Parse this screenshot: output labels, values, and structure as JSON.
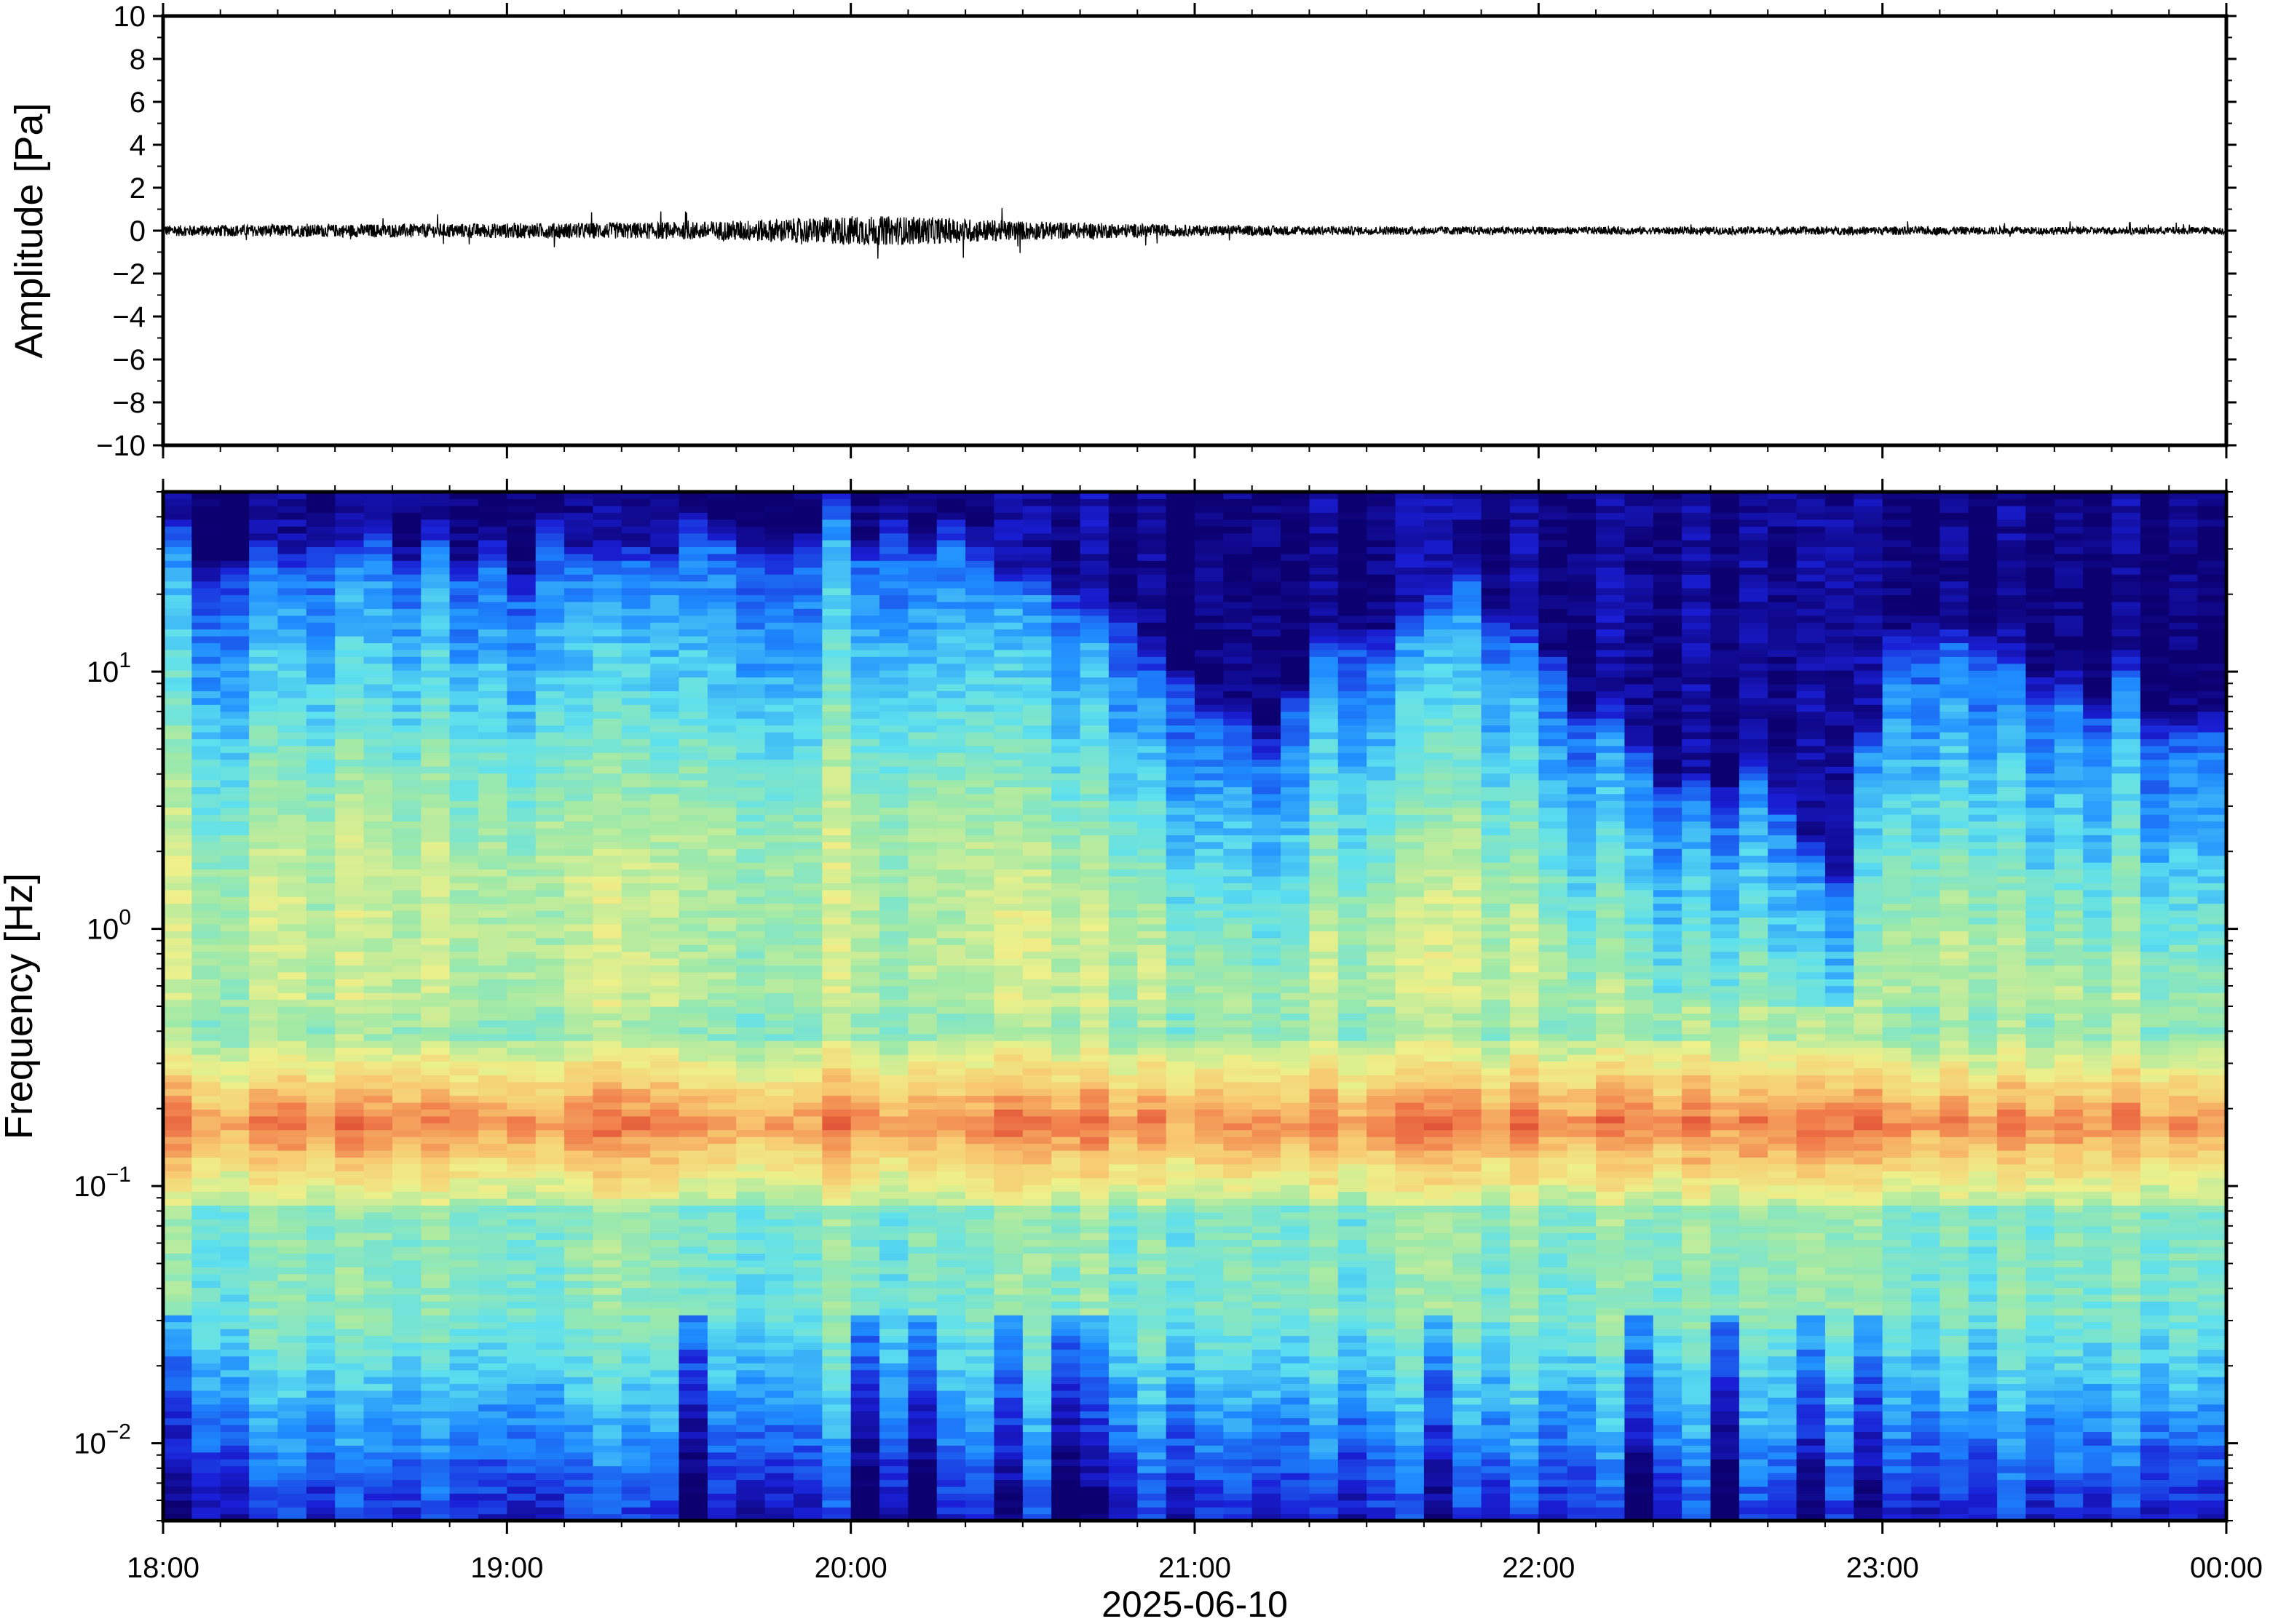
{
  "chart_data": [
    {
      "type": "line",
      "title": "",
      "ylabel": "Amplitude [Pa]",
      "ylim": [
        -10,
        10
      ],
      "yticks": [
        "10",
        "8",
        "6",
        "4",
        "2",
        "0",
        "−2",
        "−4",
        "−6",
        "−8",
        "−10"
      ],
      "ytick_values": [
        10,
        8,
        6,
        4,
        2,
        0,
        -2,
        -4,
        -6,
        -8,
        -10
      ],
      "series": [
        {
          "values_hours": [
            18.0,
            18.5,
            19.0,
            19.5,
            19.9,
            20.0,
            20.2,
            20.5,
            21.0,
            21.5,
            22.0,
            22.5,
            23.0,
            23.5,
            24.0
          ],
          "envelope_pa": [
            0.25,
            0.3,
            0.35,
            0.4,
            0.6,
            0.7,
            0.65,
            0.45,
            0.25,
            0.2,
            0.18,
            0.18,
            0.2,
            0.18,
            0.18
          ]
        }
      ],
      "line_color": "#000000"
    },
    {
      "type": "heatmap",
      "title": "",
      "ylabel": "Frequency [Hz]",
      "yscale": "log",
      "ylim": [
        0.005,
        50
      ],
      "yticks": [
        {
          "base": "10",
          "exp": "1",
          "value": 10
        },
        {
          "base": "10",
          "exp": "0",
          "value": 1
        },
        {
          "base": "10",
          "exp": "−1",
          "value": 0.1
        },
        {
          "base": "10",
          "exp": "−2",
          "value": 0.01
        }
      ],
      "colormap": "jet",
      "colors": [
        "#0c0070",
        "#1a1fd6",
        "#1e8cff",
        "#5ee0ee",
        "#9fe9a8",
        "#eef08a",
        "#f8c870",
        "#f07a4a",
        "#d63a2a"
      ],
      "features": {
        "microbarom_band_hz": [
          0.14,
          0.22
        ],
        "upper_cutoff_hz_by_hour": [
          [
            18.0,
            25
          ],
          [
            18.5,
            22
          ],
          [
            19.0,
            25
          ],
          [
            19.5,
            28
          ],
          [
            20.0,
            32
          ],
          [
            20.3,
            30
          ],
          [
            20.6,
            20
          ],
          [
            21.0,
            9
          ],
          [
            21.2,
            5
          ],
          [
            21.5,
            14
          ],
          [
            21.8,
            16
          ],
          [
            22.0,
            10
          ],
          [
            22.3,
            4
          ],
          [
            22.6,
            3
          ],
          [
            22.9,
            1.5
          ],
          [
            23.0,
            10
          ],
          [
            23.3,
            12
          ],
          [
            23.6,
            8
          ],
          [
            24.0,
            5
          ]
        ]
      }
    }
  ],
  "x_axis": {
    "ticks": [
      "18:00",
      "19:00",
      "20:00",
      "21:00",
      "22:00",
      "23:00",
      "00:00"
    ],
    "tick_values_hours": [
      18,
      19,
      20,
      21,
      22,
      23,
      24
    ],
    "xlim_hours": [
      18,
      24
    ],
    "date_label": "2025-06-10"
  }
}
